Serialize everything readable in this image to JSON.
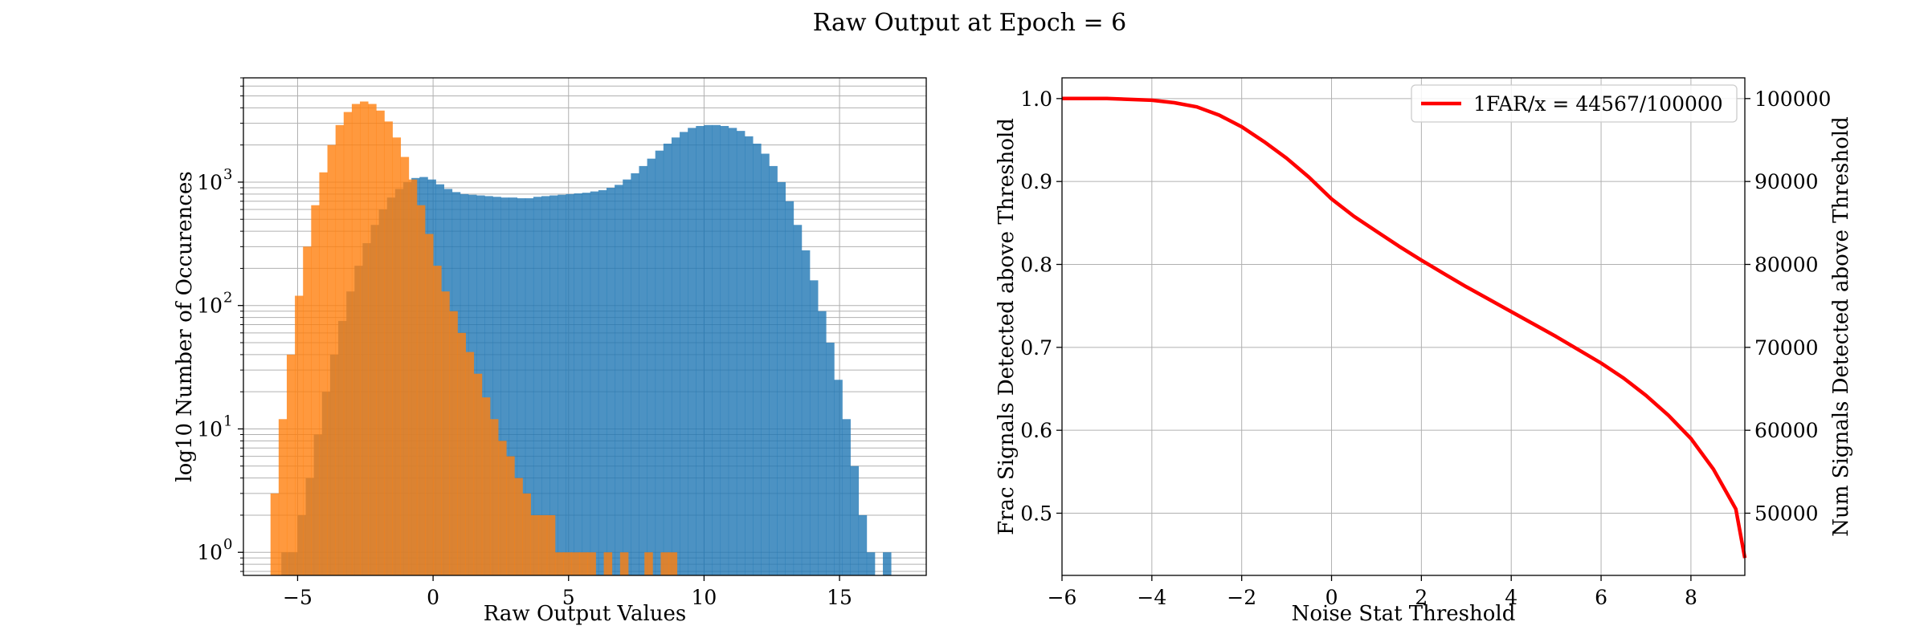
{
  "figure": {
    "title": "Raw Output at Epoch = 6"
  },
  "chart_data": [
    {
      "type": "bar",
      "subtype": "histogram",
      "xlabel": "Raw Output Values",
      "ylabel": "log10 Number of Occurences",
      "yscale": "log",
      "xlim": [
        -7.0,
        18.2
      ],
      "ylim": [
        0.65,
        7000
      ],
      "grid": true,
      "xticks": [
        -5,
        0,
        5,
        10,
        15
      ],
      "xtick_labels": [
        "−5",
        "0",
        "5",
        "10",
        "15"
      ],
      "yticks": [
        1,
        10,
        100,
        1000
      ],
      "ytick_labels": [
        "10",
        "10",
        "10",
        "10"
      ],
      "ytick_exponents": [
        "0",
        "1",
        "2",
        "3"
      ],
      "series": [
        {
          "color": "#1f77b4",
          "x": [
            -5.45,
            -5.15,
            -4.85,
            -4.55,
            -4.25,
            -3.95,
            -3.65,
            -3.35,
            -3.05,
            -2.75,
            -2.45,
            -2.15,
            -1.85,
            -1.55,
            -1.25,
            -0.95,
            -0.65,
            -0.35,
            -0.05,
            0.25,
            0.55,
            0.85,
            1.15,
            1.45,
            1.75,
            2.05,
            2.35,
            2.65,
            2.95,
            3.25,
            3.55,
            3.85,
            4.15,
            4.45,
            4.75,
            5.05,
            5.35,
            5.65,
            5.95,
            6.25,
            6.55,
            6.85,
            7.15,
            7.45,
            7.75,
            8.05,
            8.35,
            8.65,
            8.95,
            9.25,
            9.55,
            9.85,
            10.15,
            10.45,
            10.75,
            11.05,
            11.35,
            11.65,
            11.95,
            12.25,
            12.55,
            12.85,
            13.15,
            13.45,
            13.75,
            14.05,
            14.35,
            14.65,
            14.95,
            15.25,
            15.55,
            15.85,
            16.15,
            16.45,
            16.75
          ],
          "values": [
            1,
            1,
            2,
            4,
            9,
            20,
            40,
            75,
            130,
            210,
            320,
            450,
            600,
            750,
            880,
            1000,
            1080,
            1100,
            1050,
            960,
            880,
            830,
            800,
            790,
            780,
            770,
            760,
            750,
            750,
            740,
            740,
            760,
            770,
            780,
            790,
            800,
            810,
            820,
            840,
            860,
            900,
            950,
            1050,
            1180,
            1350,
            1550,
            1800,
            2050,
            2300,
            2550,
            2750,
            2850,
            2900,
            2900,
            2850,
            2750,
            2600,
            2350,
            2050,
            1700,
            1350,
            1000,
            700,
            450,
            280,
            160,
            90,
            50,
            25,
            12,
            5,
            2,
            1,
            0,
            1
          ]
        },
        {
          "color": "#ff7f0e",
          "x": [
            -5.85,
            -5.55,
            -5.25,
            -4.95,
            -4.65,
            -4.35,
            -4.05,
            -3.75,
            -3.45,
            -3.15,
            -2.85,
            -2.55,
            -2.25,
            -1.95,
            -1.65,
            -1.35,
            -1.05,
            -0.75,
            -0.45,
            -0.15,
            0.15,
            0.45,
            0.75,
            1.05,
            1.35,
            1.65,
            1.95,
            2.25,
            2.55,
            2.85,
            3.15,
            3.45,
            3.75,
            4.05,
            4.35,
            4.65,
            4.95,
            5.25,
            5.55,
            5.85,
            6.15,
            6.45,
            6.75,
            7.05,
            7.35,
            7.65,
            7.95,
            8.25,
            8.55,
            8.85
          ],
          "values": [
            3,
            12,
            40,
            120,
            300,
            650,
            1200,
            2000,
            2900,
            3700,
            4300,
            4500,
            4300,
            3800,
            3100,
            2300,
            1600,
            1050,
            650,
            380,
            210,
            130,
            90,
            60,
            42,
            28,
            18,
            12,
            8,
            6,
            4,
            3,
            2,
            2,
            2,
            1,
            1,
            1,
            1,
            1,
            0,
            1,
            0,
            1,
            0,
            0,
            1,
            0,
            1,
            1
          ]
        }
      ]
    },
    {
      "type": "line",
      "xlabel": "Noise Stat Threshold",
      "ylabel": "Frac Signals Detected above Threshold",
      "ylabel_right": "Num Signals Detected above Threshold",
      "xlim": [
        -6.0,
        9.2
      ],
      "ylim": [
        0.425,
        1.025
      ],
      "ylim_right": [
        42500,
        102500
      ],
      "grid": true,
      "legend_position": "top-right",
      "xticks": [
        -6,
        -4,
        -2,
        0,
        2,
        4,
        6,
        8
      ],
      "xtick_labels": [
        "−6",
        "−4",
        "−2",
        "0",
        "2",
        "4",
        "6",
        "8"
      ],
      "yticks": [
        0.5,
        0.6,
        0.7,
        0.8,
        0.9,
        1.0
      ],
      "ytick_labels": [
        "0.5",
        "0.6",
        "0.7",
        "0.8",
        "0.9",
        "1.0"
      ],
      "yticks_right": [
        50000,
        60000,
        70000,
        80000,
        90000,
        100000
      ],
      "ytick_labels_right": [
        "50000",
        "60000",
        "70000",
        "80000",
        "90000",
        "100000"
      ],
      "series": [
        {
          "name": "1FAR/x = 44567/100000",
          "color": "#ff0000",
          "x": [
            -6.0,
            -5.0,
            -4.0,
            -3.5,
            -3.0,
            -2.5,
            -2.0,
            -1.5,
            -1.0,
            -0.5,
            0.0,
            0.5,
            1.0,
            1.5,
            2.0,
            2.5,
            3.0,
            3.5,
            4.0,
            4.5,
            5.0,
            5.5,
            6.0,
            6.5,
            7.0,
            7.5,
            8.0,
            8.5,
            9.0,
            9.2
          ],
          "values": [
            1.0,
            1.0,
            0.998,
            0.995,
            0.99,
            0.98,
            0.966,
            0.948,
            0.928,
            0.905,
            0.879,
            0.858,
            0.84,
            0.822,
            0.805,
            0.789,
            0.773,
            0.758,
            0.743,
            0.728,
            0.713,
            0.697,
            0.681,
            0.663,
            0.642,
            0.618,
            0.59,
            0.553,
            0.505,
            0.446
          ]
        }
      ]
    }
  ]
}
